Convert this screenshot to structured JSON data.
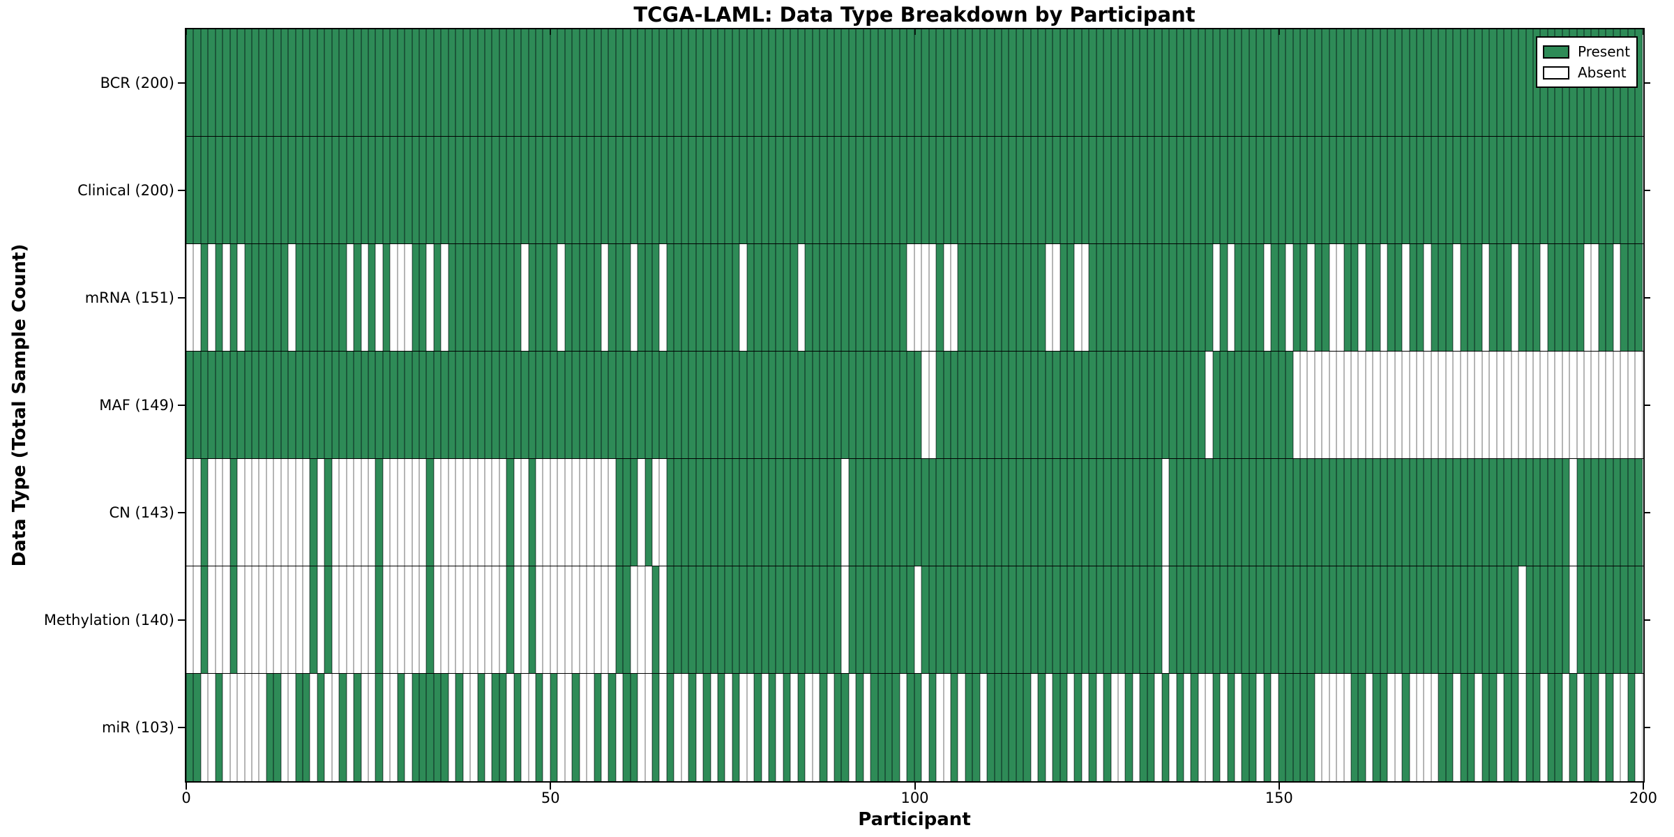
{
  "title": "TCGA-LAML: Data Type Breakdown by Participant",
  "xlabel": "Participant",
  "ylabel": "Data Type (Total Sample Count)",
  "legend": {
    "entries": [
      {
        "label": "Present",
        "color": "#2e8b57"
      },
      {
        "label": "Absent",
        "color": "#ffffff"
      }
    ]
  },
  "chart_data": {
    "type": "heatmap",
    "title": "TCGA-LAML: Data Type Breakdown by Participant",
    "xlabel": "Participant",
    "ylabel": "Data Type (Total Sample Count)",
    "n_participants": 200,
    "x_axis": {
      "range": [
        0,
        200
      ],
      "ticks": [
        0,
        50,
        100,
        150,
        200
      ]
    },
    "colors": {
      "present": "#2e8b57",
      "absent": "#ffffff",
      "edge": "#000000"
    },
    "legend_position": "upper right",
    "grid": false,
    "rows": [
      {
        "name": "BCR",
        "label": "BCR (200)",
        "present_count": 200,
        "absent_participants": []
      },
      {
        "name": "Clinical",
        "label": "Clinical (200)",
        "present_count": 200,
        "absent_participants": []
      },
      {
        "name": "mRNA",
        "label": "mRNA (151)",
        "present_count": 151,
        "absent_participants": [
          0,
          1,
          3,
          5,
          7,
          14,
          22,
          24,
          26,
          28,
          29,
          30,
          33,
          35,
          46,
          51,
          57,
          61,
          65,
          76,
          84,
          99,
          100,
          101,
          102,
          104,
          105,
          118,
          119,
          122,
          123,
          141,
          143,
          148,
          151,
          154,
          157,
          158,
          161,
          164,
          167,
          170,
          174,
          178,
          182,
          186,
          192,
          193,
          196
        ]
      },
      {
        "name": "MAF",
        "label": "MAF (149)",
        "present_count": 149,
        "absent_participants": [
          101,
          102,
          140,
          152,
          153,
          154,
          155,
          156,
          157,
          158,
          159,
          160,
          161,
          162,
          163,
          164,
          165,
          166,
          167,
          168,
          169,
          170,
          171,
          172,
          173,
          174,
          175,
          176,
          177,
          178,
          179,
          180,
          181,
          182,
          183,
          184,
          185,
          186,
          187,
          188,
          189,
          190,
          191,
          192,
          193,
          194,
          195,
          196,
          197,
          198,
          199
        ]
      },
      {
        "name": "CN",
        "label": "CN (143)",
        "present_count": 143,
        "absent_participants": [
          0,
          1,
          3,
          4,
          5,
          7,
          8,
          9,
          10,
          11,
          12,
          13,
          14,
          15,
          16,
          18,
          20,
          21,
          22,
          23,
          24,
          25,
          27,
          28,
          29,
          30,
          31,
          32,
          34,
          35,
          36,
          37,
          38,
          39,
          40,
          41,
          42,
          43,
          45,
          46,
          48,
          49,
          50,
          51,
          52,
          53,
          54,
          55,
          56,
          57,
          58,
          62,
          64,
          65,
          90,
          134,
          190
        ]
      },
      {
        "name": "Methylation",
        "label": "Methylation (140)",
        "present_count": 140,
        "absent_participants": [
          0,
          1,
          3,
          4,
          5,
          7,
          8,
          9,
          10,
          11,
          12,
          13,
          14,
          15,
          16,
          18,
          20,
          21,
          22,
          23,
          24,
          25,
          27,
          28,
          29,
          30,
          31,
          32,
          34,
          35,
          36,
          37,
          38,
          39,
          40,
          41,
          42,
          43,
          45,
          46,
          48,
          49,
          50,
          51,
          52,
          53,
          54,
          55,
          56,
          57,
          58,
          61,
          62,
          63,
          65,
          90,
          100,
          134,
          183,
          190
        ]
      },
      {
        "name": "miR",
        "label": "miR (103)",
        "present_count": 103,
        "absent_participants": [
          2,
          3,
          5,
          6,
          7,
          8,
          9,
          10,
          13,
          14,
          17,
          19,
          20,
          22,
          24,
          25,
          27,
          28,
          30,
          36,
          38,
          39,
          41,
          44,
          46,
          47,
          49,
          51,
          52,
          54,
          55,
          57,
          59,
          62,
          63,
          65,
          67,
          68,
          70,
          72,
          74,
          76,
          77,
          79,
          81,
          83,
          85,
          86,
          88,
          91,
          93,
          98,
          101,
          103,
          104,
          106,
          109,
          116,
          118,
          121,
          123,
          125,
          127,
          128,
          130,
          133,
          135,
          137,
          139,
          140,
          142,
          144,
          147,
          149,
          155,
          156,
          157,
          158,
          159,
          162,
          165,
          166,
          168,
          169,
          170,
          171,
          174,
          177,
          180,
          183,
          186,
          189,
          191,
          194,
          196,
          197,
          199
        ]
      }
    ]
  }
}
